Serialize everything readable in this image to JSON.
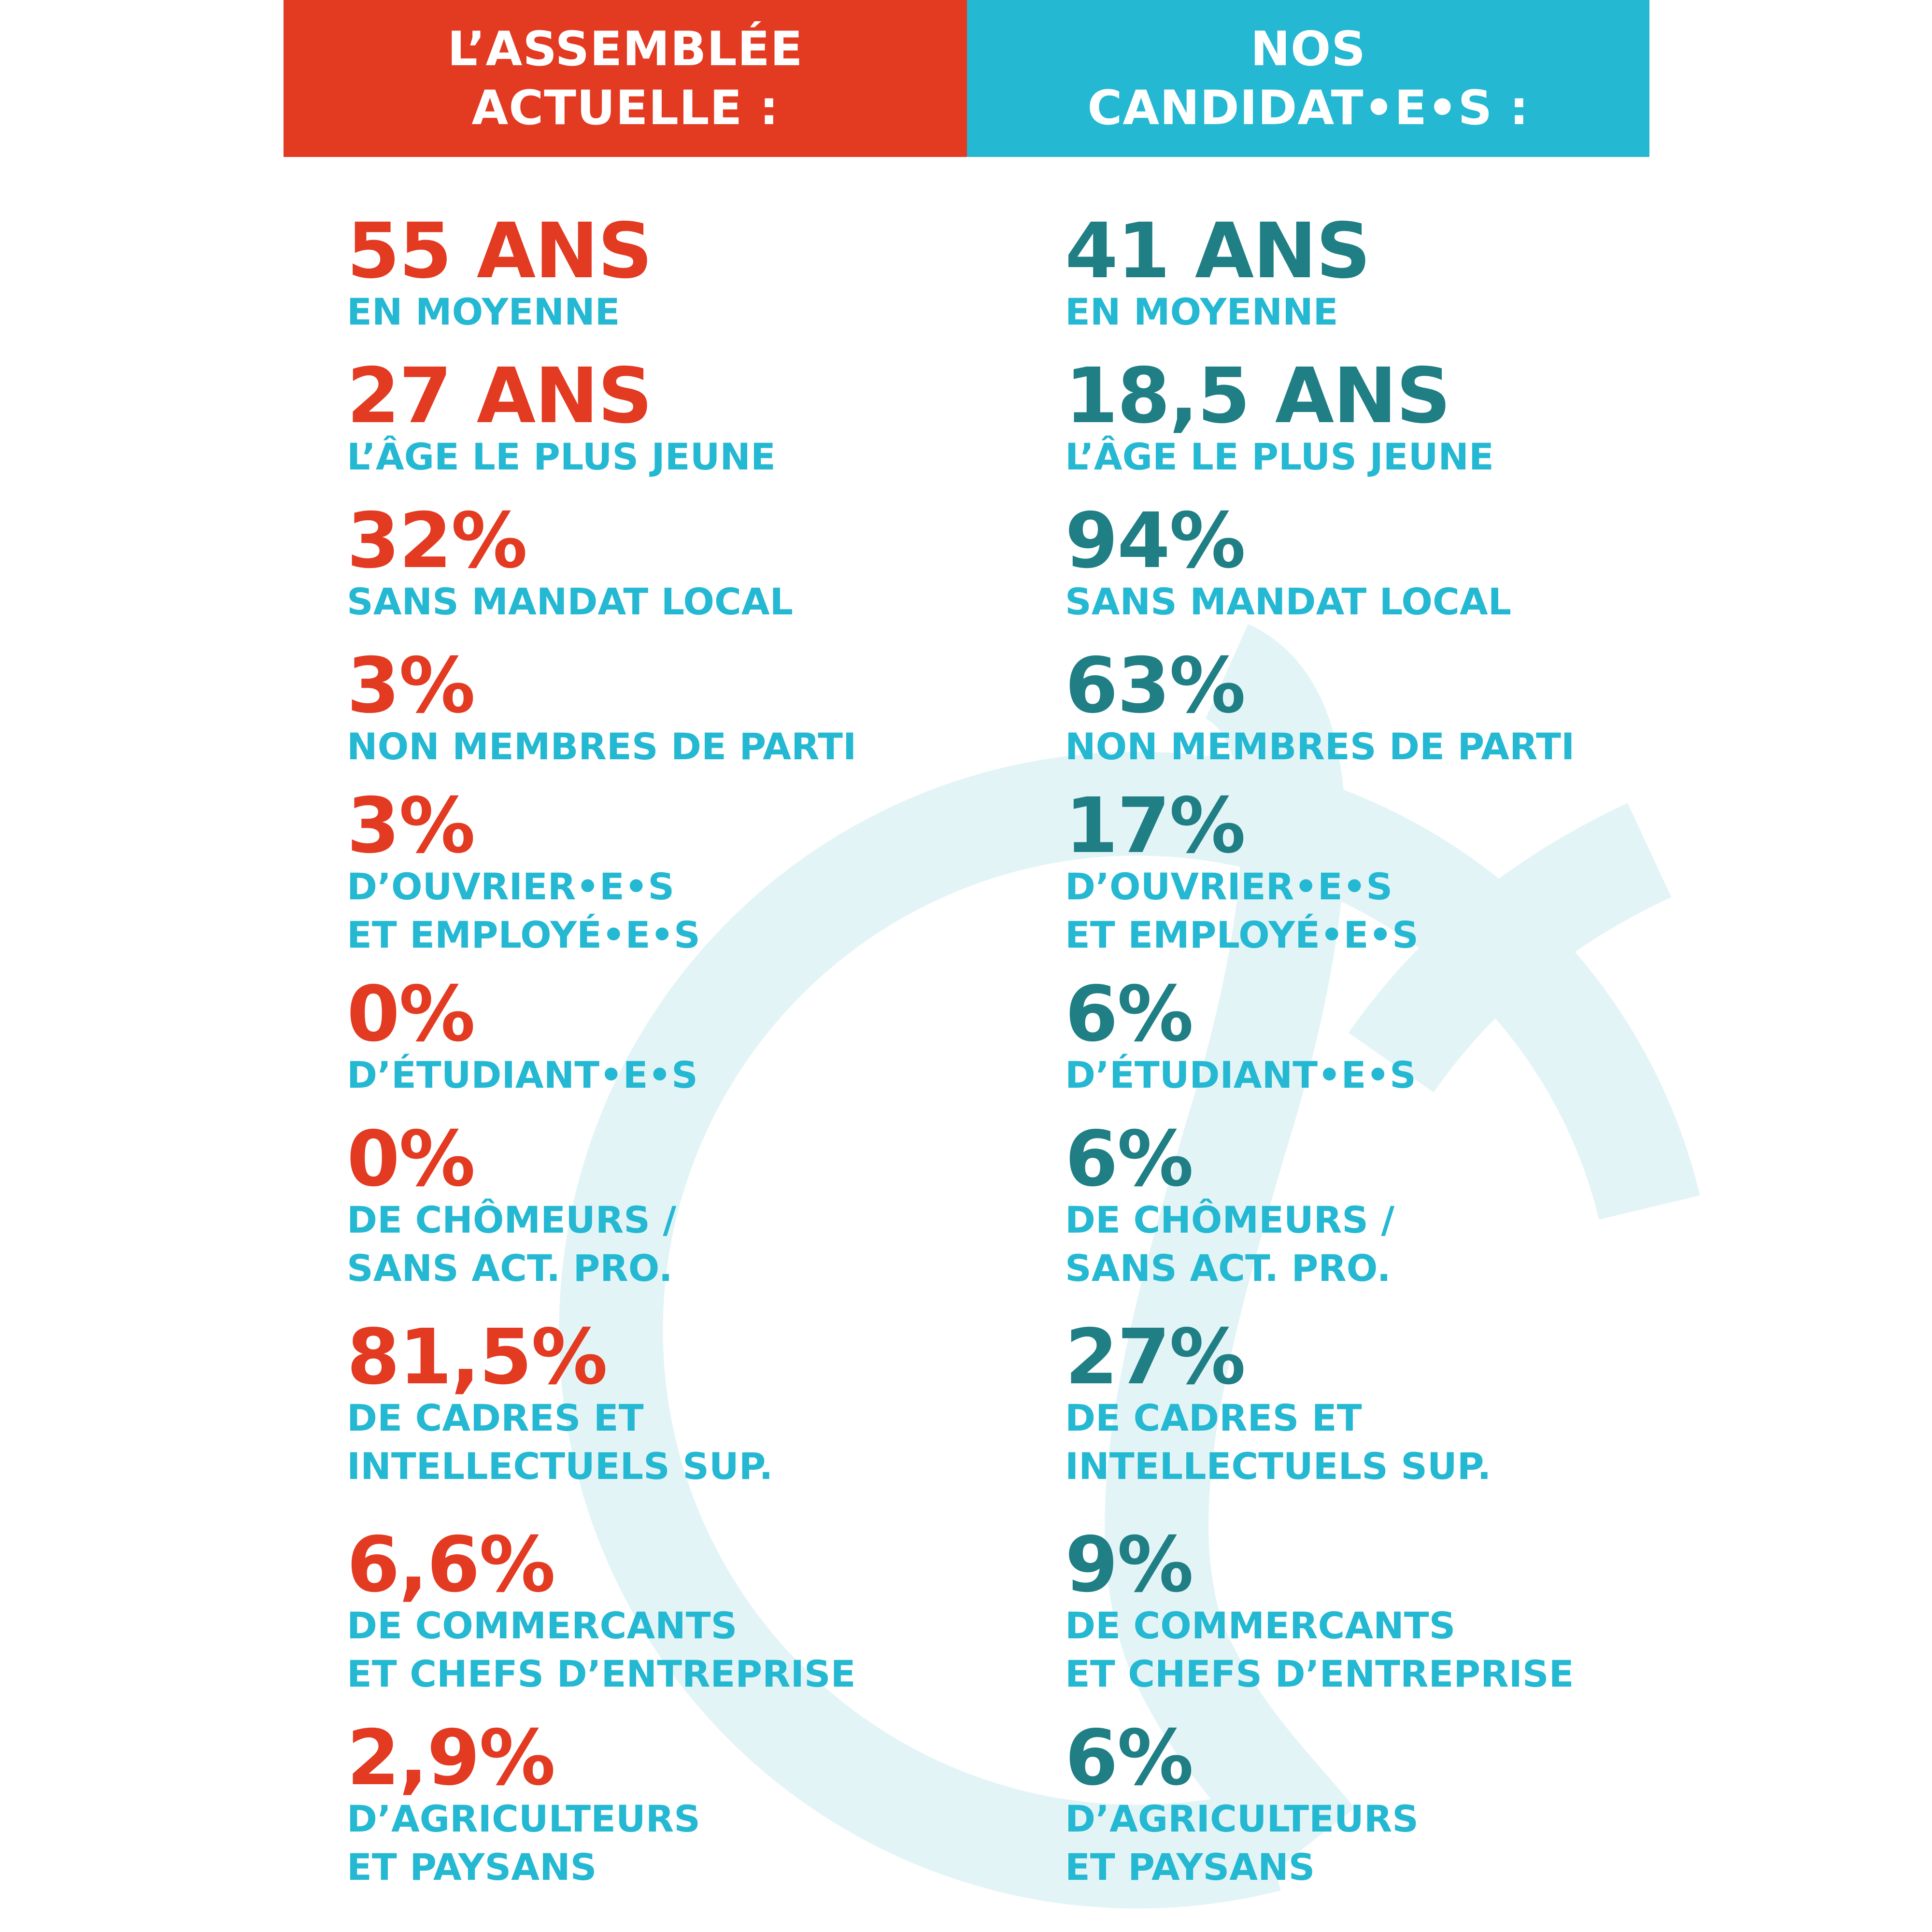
{
  "colors": {
    "red": "#e33a22",
    "cyan": "#24b8d2",
    "teal": "#1f7f85",
    "watermark": "#e3f4f7"
  },
  "background": {
    "watermark_icon": "large-circle-swirl-icon"
  },
  "left": {
    "header_lines": [
      "L’ASSEMBLÉE",
      "ACTUELLE :"
    ],
    "stats": [
      {
        "value": "55 ANS",
        "label_lines": [
          "EN MOYENNE"
        ]
      },
      {
        "value": "27 ANS",
        "label_lines": [
          "L’ÂGE LE PLUS JEUNE"
        ]
      },
      {
        "value": "32%",
        "label_lines": [
          "SANS MANDAT LOCAL"
        ]
      },
      {
        "value": "3%",
        "label_lines": [
          "NON MEMBRES DE PARTI"
        ]
      },
      {
        "value": "3%",
        "label_lines": [
          "D’OUVRIER•E•S",
          "ET EMPLOYÉ•E•S"
        ]
      },
      {
        "value": "0%",
        "label_lines": [
          "D’ÉTUDIANT•E•S"
        ]
      },
      {
        "value": "0%",
        "label_lines": [
          "DE CHÔMEURS /",
          "SANS ACT. PRO."
        ]
      },
      {
        "value": "81,5%",
        "label_lines": [
          "DE CADRES ET",
          "INTELLECTUELS SUP."
        ]
      },
      {
        "value": "6,6%",
        "label_lines": [
          "DE COMMERCANTS",
          "ET CHEFS D’ENTREPRISE"
        ]
      },
      {
        "value": "2,9%",
        "label_lines": [
          "D’AGRICULTEURS",
          "ET PAYSANS"
        ]
      }
    ]
  },
  "right": {
    "header_lines": [
      "NOS",
      "CANDIDAT•E•S :"
    ],
    "stats": [
      {
        "value": "41 ANS",
        "label_lines": [
          "EN MOYENNE"
        ]
      },
      {
        "value": "18,5 ANS",
        "label_lines": [
          "L’ÂGE LE PLUS JEUNE"
        ]
      },
      {
        "value": "94%",
        "label_lines": [
          "SANS MANDAT LOCAL"
        ]
      },
      {
        "value": "63%",
        "label_lines": [
          "NON MEMBRES DE PARTI"
        ]
      },
      {
        "value": "17%",
        "label_lines": [
          "D’OUVRIER•E•S",
          "ET EMPLOYÉ•E•S"
        ]
      },
      {
        "value": "6%",
        "label_lines": [
          "D’ÉTUDIANT•E•S"
        ]
      },
      {
        "value": "6%",
        "label_lines": [
          "DE CHÔMEURS /",
          "SANS ACT. PRO."
        ]
      },
      {
        "value": "27%",
        "label_lines": [
          "DE CADRES ET",
          "INTELLECTUELS SUP."
        ]
      },
      {
        "value": "9%",
        "label_lines": [
          "DE COMMERCANTS",
          "ET CHEFS D’ENTREPRISE"
        ]
      },
      {
        "value": "6%",
        "label_lines": [
          "D’AGRICULTEURS",
          "ET PAYSANS"
        ]
      }
    ]
  }
}
